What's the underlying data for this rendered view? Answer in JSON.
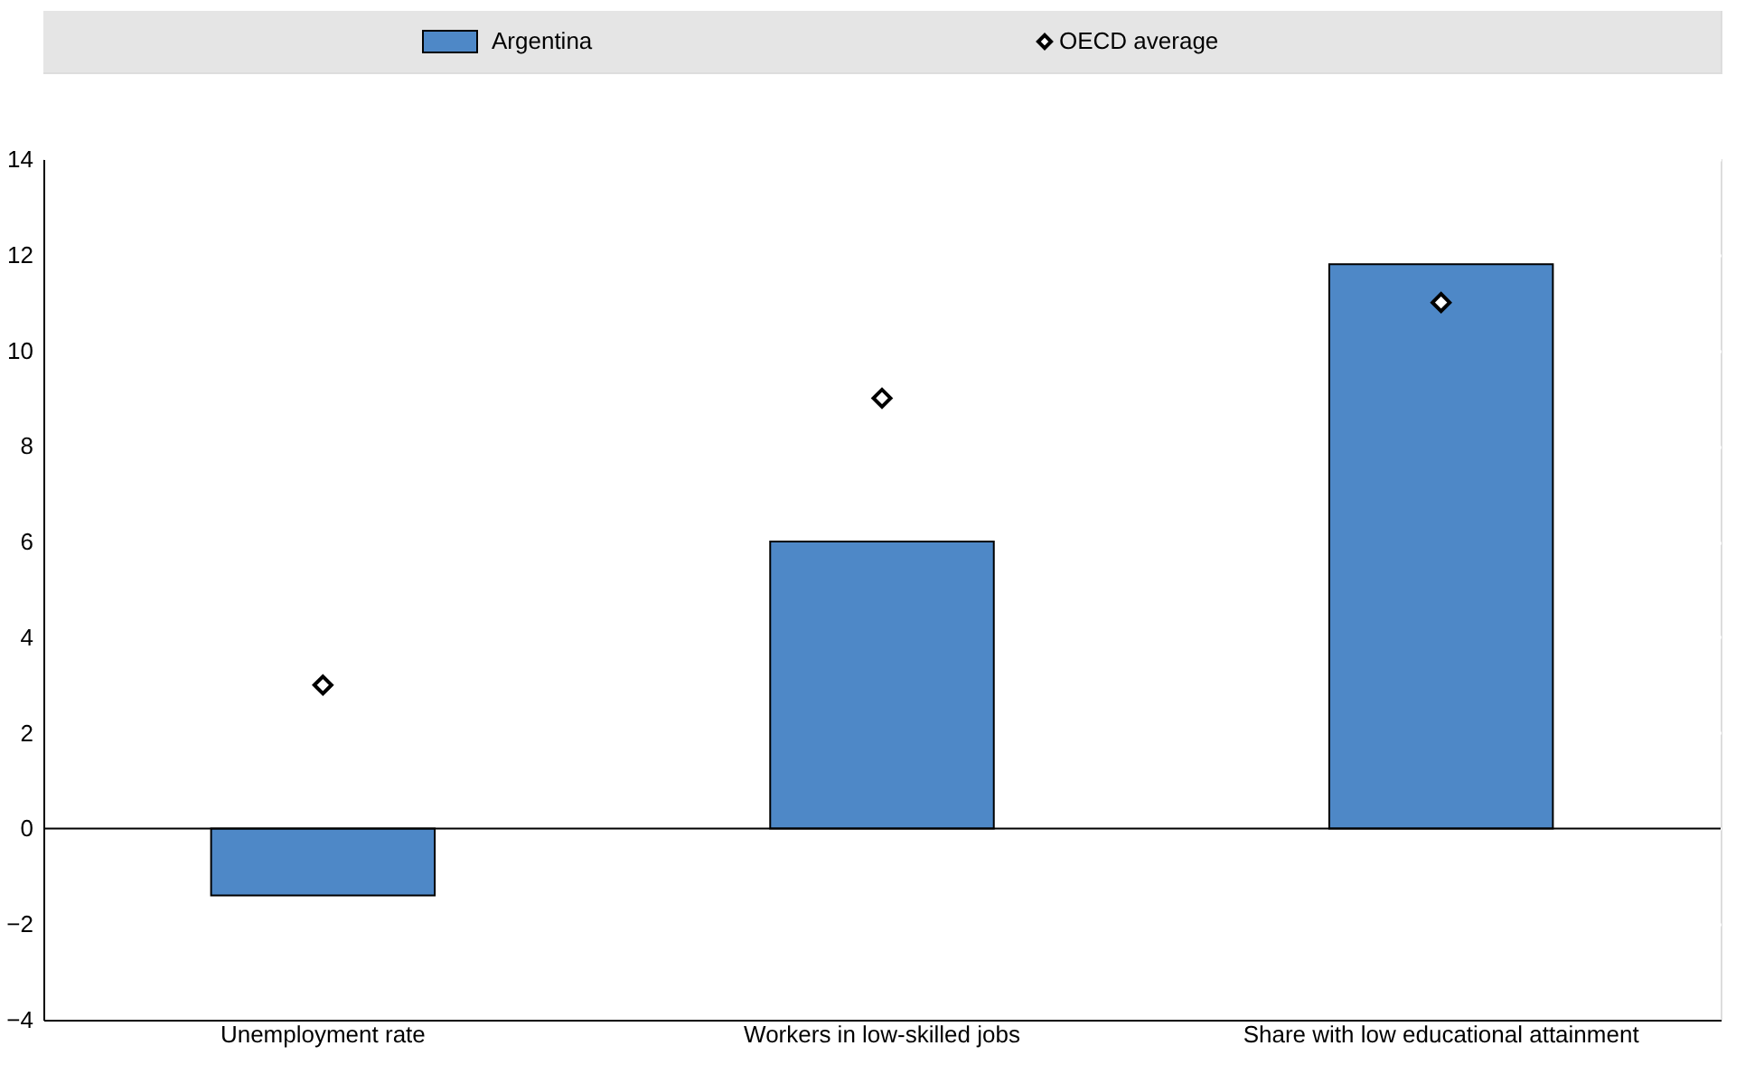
{
  "chart_data": {
    "type": "bar",
    "categories": [
      "Unemployment rate",
      "Workers in low-skilled jobs",
      "Share with low educational attainment"
    ],
    "series": [
      {
        "name": "Argentina",
        "color": "#4e88c7",
        "values": [
          -1.4,
          6.0,
          11.8
        ]
      },
      {
        "name": "OECD average",
        "type": "scatter",
        "color": "#ffffff",
        "marker": "diamond",
        "values": [
          3,
          9,
          11
        ]
      }
    ],
    "ylim": [
      -4,
      14
    ],
    "yticks": [
      -4,
      -2,
      0,
      2,
      4,
      6,
      8,
      10,
      12,
      14
    ],
    "grid": true,
    "legend": "top"
  }
}
